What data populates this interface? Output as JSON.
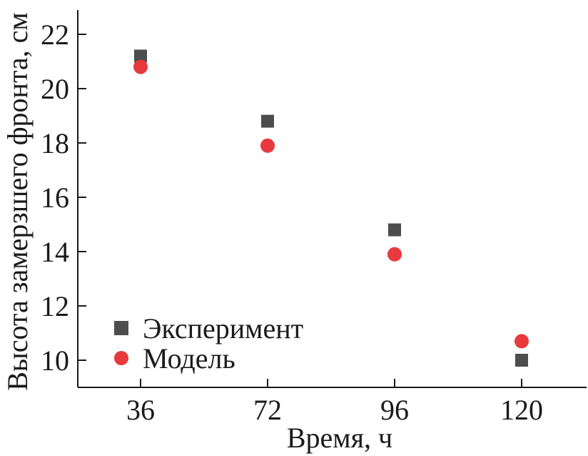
{
  "chart_data": {
    "type": "scatter",
    "xlabel": "Время, ч",
    "ylabel": "Высота замерзшего фронта, см",
    "x_categories": [
      "36",
      "72",
      "96",
      "120"
    ],
    "ylim": [
      9,
      22.9
    ],
    "yticks": [
      10,
      12,
      14,
      16,
      18,
      20,
      22
    ],
    "series": [
      {
        "name": "Эксперимент",
        "marker": "square",
        "color": "#4d4d4d",
        "values": [
          21.2,
          18.8,
          14.8,
          10.0
        ]
      },
      {
        "name": "Модель",
        "marker": "circle",
        "color": "#e8393c",
        "values": [
          20.8,
          17.9,
          13.9,
          10.7
        ]
      }
    ],
    "legend_position": "bottom-left",
    "grid": false
  }
}
